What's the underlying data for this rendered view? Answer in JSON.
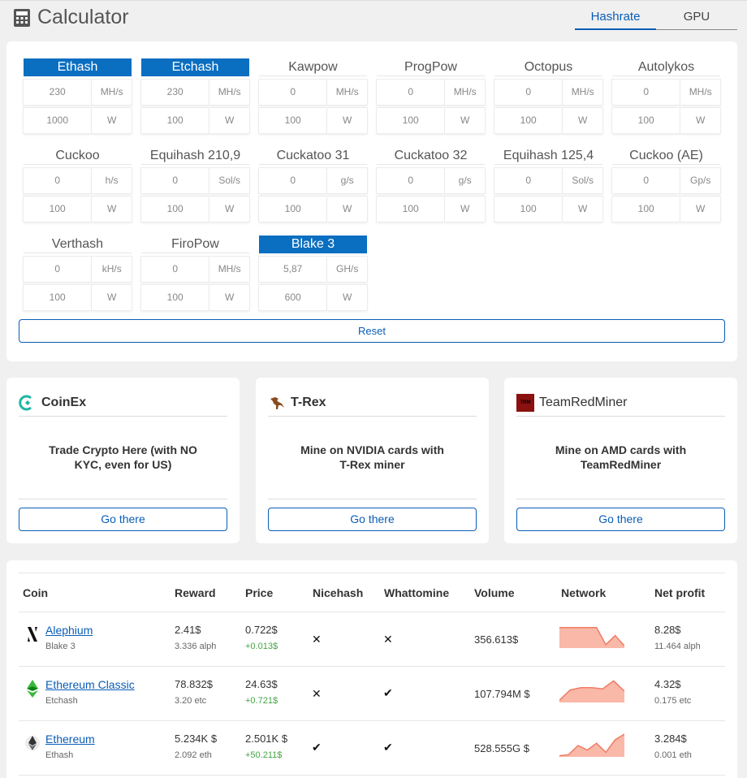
{
  "header": {
    "title": "Calculator",
    "icon": "calculator-icon"
  },
  "tabs": [
    {
      "label": "Hashrate",
      "active": true
    },
    {
      "label": "GPU",
      "active": false
    }
  ],
  "algorithms": [
    {
      "name": "Ethash",
      "selected": true,
      "hashrate": "230",
      "unit": "MH/s",
      "power": "1000",
      "power_unit": "W"
    },
    {
      "name": "Etchash",
      "selected": true,
      "hashrate": "230",
      "unit": "MH/s",
      "power": "100",
      "power_unit": "W"
    },
    {
      "name": "Kawpow",
      "selected": false,
      "hashrate": "0",
      "unit": "MH/s",
      "power": "100",
      "power_unit": "W"
    },
    {
      "name": "ProgPow",
      "selected": false,
      "hashrate": "0",
      "unit": "MH/s",
      "power": "100",
      "power_unit": "W"
    },
    {
      "name": "Octopus",
      "selected": false,
      "hashrate": "0",
      "unit": "MH/s",
      "power": "100",
      "power_unit": "W"
    },
    {
      "name": "Autolykos",
      "selected": false,
      "hashrate": "0",
      "unit": "MH/s",
      "power": "100",
      "power_unit": "W"
    },
    {
      "name": "Cuckoo",
      "selected": false,
      "hashrate": "0",
      "unit": "h/s",
      "power": "100",
      "power_unit": "W"
    },
    {
      "name": "Equihash 210,9",
      "selected": false,
      "hashrate": "0",
      "unit": "Sol/s",
      "power": "100",
      "power_unit": "W"
    },
    {
      "name": "Cuckatoo 31",
      "selected": false,
      "hashrate": "0",
      "unit": "g/s",
      "power": "100",
      "power_unit": "W"
    },
    {
      "name": "Cuckatoo 32",
      "selected": false,
      "hashrate": "0",
      "unit": "g/s",
      "power": "100",
      "power_unit": "W"
    },
    {
      "name": "Equihash 125,4",
      "selected": false,
      "hashrate": "0",
      "unit": "Sol/s",
      "power": "100",
      "power_unit": "W"
    },
    {
      "name": "Cuckoo (AE)",
      "selected": false,
      "hashrate": "0",
      "unit": "Gp/s",
      "power": "100",
      "power_unit": "W"
    },
    {
      "name": "Verthash",
      "selected": false,
      "hashrate": "0",
      "unit": "kH/s",
      "power": "100",
      "power_unit": "W"
    },
    {
      "name": "FiroPow",
      "selected": false,
      "hashrate": "0",
      "unit": "MH/s",
      "power": "100",
      "power_unit": "W"
    },
    {
      "name": "Blake 3",
      "selected": true,
      "hashrate": "5,87",
      "unit": "GH/s",
      "power": "600",
      "power_unit": "W"
    }
  ],
  "reset_label": "Reset",
  "promos": [
    {
      "brand": "CoinEx",
      "text_line1": "Trade Crypto Here (with NO",
      "text_line2": "KYC, even for US)",
      "button": "Go there"
    },
    {
      "brand": "T-Rex",
      "text_line1": "Mine on NVIDIA cards with",
      "text_line2": "T-Rex miner",
      "button": "Go there"
    },
    {
      "brand": "TeamRedMiner",
      "logo_text": "TRM",
      "text_line1": "Mine on AMD cards with",
      "text_line2": "TeamRedMiner",
      "button": "Go there"
    }
  ],
  "table": {
    "headers": [
      "Coin",
      "Reward",
      "Price",
      "Nicehash",
      "Whattomine",
      "Volume",
      "Network",
      "Net profit"
    ],
    "rows": [
      {
        "coin": "Alephium",
        "algo": "Blake 3",
        "reward": "2.41$",
        "reward_sub": "3.336 alph",
        "price": "0.722$",
        "price_change": "+0.013$",
        "nicehash": false,
        "whattomine": false,
        "volume": "356.613$",
        "net_profit": "8.28$",
        "net_profit_sub": "11.464 alph",
        "network_trend": [
          0.9,
          0.9,
          0.9,
          0.9,
          0.9,
          0.15,
          0.55,
          0.1
        ]
      },
      {
        "coin": "Ethereum Classic",
        "algo": "Etchash",
        "reward": "78.832$",
        "reward_sub": "3.20 etc",
        "price": "24.63$",
        "price_change": "+0.721$",
        "nicehash": false,
        "whattomine": true,
        "volume": "107.794M $",
        "net_profit": "4.32$",
        "net_profit_sub": "0.175 etc",
        "network_trend": [
          0.1,
          0.55,
          0.65,
          0.65,
          0.6,
          0.95,
          0.5
        ]
      },
      {
        "coin": "Ethereum",
        "algo": "Ethash",
        "reward": "5.234K $",
        "reward_sub": "2.092 eth",
        "price": "2.501K $",
        "price_change": "+50.211$",
        "nicehash": true,
        "whattomine": true,
        "volume": "528.555G $",
        "net_profit": "3.284$",
        "net_profit_sub": "0.001 eth",
        "network_trend": [
          0.05,
          0.1,
          0.5,
          0.3,
          0.6,
          0.2,
          0.75,
          1.0
        ]
      }
    ]
  },
  "colors": {
    "accent": "#0a6ec1",
    "link": "#0a5db6",
    "spark_fill": "#f9b8a8",
    "spark_line": "#f07b63",
    "positive": "#44a544"
  }
}
